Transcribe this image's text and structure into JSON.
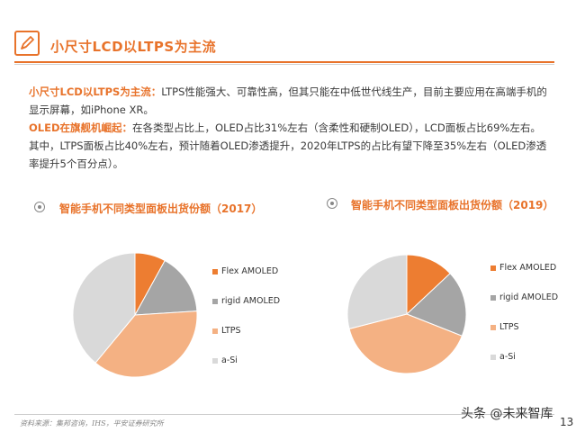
{
  "header": {
    "title": "小尺寸LCD以LTPS为主流",
    "logo_icon": "pencil-icon",
    "accent_color": "#e8732b"
  },
  "paragraphs": [
    {
      "lead": "小尺寸LCD以LTPS为主流：",
      "body": "LTPS性能强大、可靠性高，但其只能在中低世代线生产，目前主要应用在高端手机的显示屏幕，如iPhone XR。"
    },
    {
      "lead": "OLED在旗舰机崛起：",
      "body": "在各类型占比上，OLED占比31%左右（含柔性和硬制OLED），LCD面板占比69%左右。其中，LTPS面板占比40%左右，预计随着OLED渗透提升，2020年LTPS的占比有望下降至35%左右（OLED渗透率提升5个百分点）。"
    }
  ],
  "chart_data": [
    {
      "type": "pie",
      "title": "智能手机不同类型面板出货份额（2017）",
      "categories": [
        "Flex AMOLED",
        "rigid AMOLED",
        "LTPS",
        "a-Si"
      ],
      "values": [
        8,
        16,
        37,
        39
      ],
      "colors": [
        "#ed7d31",
        "#a5a5a5",
        "#f4b183",
        "#d9d9d9"
      ],
      "legend": "right"
    },
    {
      "type": "pie",
      "title": "智能手机不同类型面板出货份额（2019）",
      "categories": [
        "Flex AMOLED",
        "rigid AMOLED",
        "LTPS",
        "a-Si"
      ],
      "values": [
        13,
        18,
        40,
        29
      ],
      "colors": [
        "#ed7d31",
        "#a5a5a5",
        "#f4b183",
        "#d9d9d9"
      ],
      "legend": "right"
    }
  ],
  "footer": {
    "source": "资料来源：集邦咨询，IHS，平安证券研究所",
    "watermark": "头条 @未来智库",
    "page_number": "13"
  }
}
